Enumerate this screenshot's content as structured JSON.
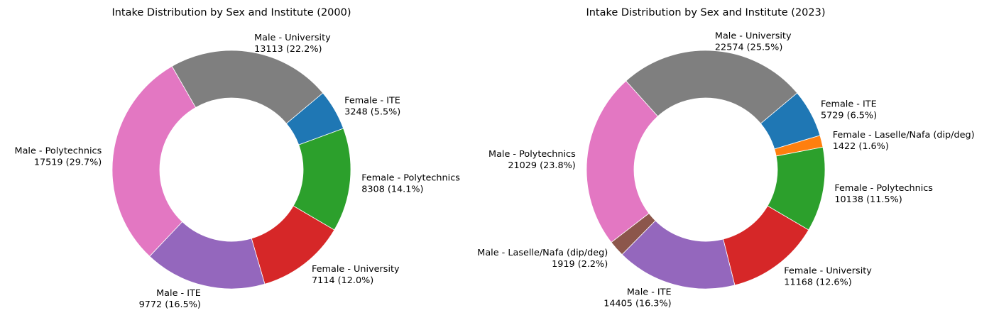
{
  "chart_data": [
    {
      "type": "donut",
      "title": "Intake Distribution by Sex and Institute (2000)",
      "slices": [
        {
          "name": "Female - ITE",
          "value": 3248,
          "pct": "5.5%",
          "color": "#1f77b4"
        },
        {
          "name": "Female - Polytechnics",
          "value": 8308,
          "pct": "14.1%",
          "color": "#2ca02c"
        },
        {
          "name": "Female - University",
          "value": 7114,
          "pct": "12.0%",
          "color": "#d62728"
        },
        {
          "name": "Male - ITE",
          "value": 9772,
          "pct": "16.5%",
          "color": "#9467bd"
        },
        {
          "name": "Male - Polytechnics",
          "value": 17519,
          "pct": "29.7%",
          "color": "#e377c2"
        },
        {
          "name": "Male - University",
          "value": 13113,
          "pct": "22.2%",
          "color": "#7f7f7f"
        }
      ]
    },
    {
      "type": "donut",
      "title": "Intake Distribution by Sex and Institute (2023)",
      "slices": [
        {
          "name": "Female - ITE",
          "value": 5729,
          "pct": "6.5%",
          "color": "#1f77b4"
        },
        {
          "name": "Female - Laselle/Nafa (dip/deg)",
          "value": 1422,
          "pct": "1.6%",
          "color": "#ff7f0e"
        },
        {
          "name": "Female - Polytechnics",
          "value": 10138,
          "pct": "11.5%",
          "color": "#2ca02c"
        },
        {
          "name": "Female - University",
          "value": 11168,
          "pct": "12.6%",
          "color": "#d62728"
        },
        {
          "name": "Male - ITE",
          "value": 14405,
          "pct": "16.3%",
          "color": "#9467bd"
        },
        {
          "name": "Male - Laselle/Nafa (dip/deg)",
          "value": 1919,
          "pct": "2.2%",
          "color": "#8c564b"
        },
        {
          "name": "Male - Polytechnics",
          "value": 21029,
          "pct": "23.8%",
          "color": "#e377c2"
        },
        {
          "name": "Male - University",
          "value": 22574,
          "pct": "25.5%",
          "color": "#7f7f7f"
        }
      ]
    }
  ]
}
